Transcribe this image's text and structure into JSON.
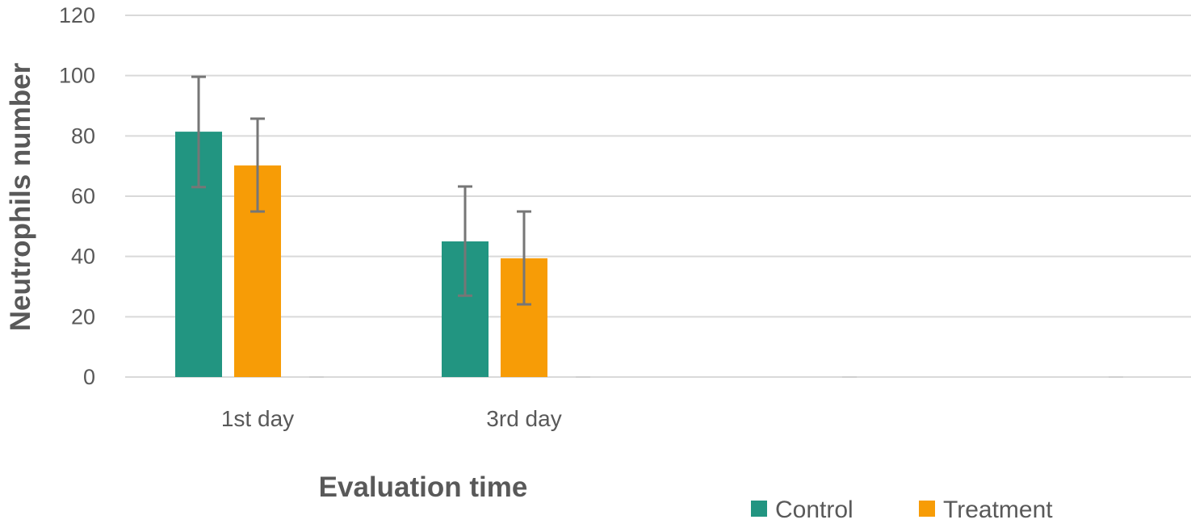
{
  "chart_data": {
    "type": "bar",
    "title": "",
    "xlabel": "Evaluation time",
    "ylabel": "Neutrophils number",
    "ylim": [
      0,
      120
    ],
    "yticks": [
      0,
      20,
      40,
      60,
      80,
      100,
      120
    ],
    "grid": true,
    "legend_position": "bottom-right",
    "categories": [
      "1st day",
      "3rd day",
      "",
      ""
    ],
    "series": [
      {
        "name": "Control",
        "color": "#229581",
        "values": [
          81.4,
          45.0,
          0,
          0
        ],
        "error_low": [
          63.0,
          27.0,
          0,
          0
        ],
        "error_high": [
          99.6,
          63.2,
          0,
          0
        ]
      },
      {
        "name": "Treatment",
        "color": "#f79c06",
        "values": [
          70.2,
          39.4,
          0,
          0
        ],
        "error_low": [
          54.9,
          24.1,
          0,
          0
        ],
        "error_high": [
          85.7,
          54.9,
          0,
          0
        ]
      }
    ]
  }
}
